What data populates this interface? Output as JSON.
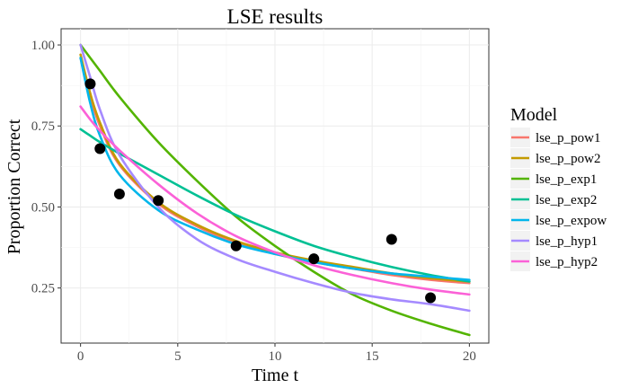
{
  "chart_data": {
    "type": "line",
    "title": "LSE results",
    "xlabel": "Time t",
    "ylabel": "Proportion Correct",
    "xlim": [
      -1,
      21
    ],
    "ylim": [
      0.08,
      1.05
    ],
    "xticks": [
      0,
      5,
      10,
      15,
      20
    ],
    "xtick_labels": [
      "0",
      "5",
      "10",
      "15",
      "20"
    ],
    "yticks": [
      0.25,
      0.5,
      0.75,
      1.0
    ],
    "ytick_labels": [
      "0.25",
      "0.50",
      "0.75",
      "1.00"
    ],
    "grid": true,
    "legend": {
      "title": "Model",
      "placement": "right"
    },
    "series": [
      {
        "name": "lse_p_pow1",
        "color": "#F8766D",
        "x": [
          0,
          0.5,
          1,
          2,
          4,
          6,
          8,
          10,
          12,
          14,
          16,
          18,
          20
        ],
        "y": [
          0.96,
          0.84,
          0.75,
          0.63,
          0.51,
          0.44,
          0.39,
          0.355,
          0.33,
          0.31,
          0.29,
          0.275,
          0.265
        ]
      },
      {
        "name": "lse_p_pow2",
        "color": "#C49A00",
        "x": [
          0,
          0.5,
          1,
          2,
          4,
          6,
          8,
          10,
          12,
          14,
          16,
          18,
          20
        ],
        "y": [
          0.97,
          0.85,
          0.76,
          0.635,
          0.515,
          0.445,
          0.395,
          0.36,
          0.335,
          0.315,
          0.295,
          0.28,
          0.27
        ]
      },
      {
        "name": "lse_p_exp1",
        "color": "#53B400",
        "x": [
          0,
          0.5,
          1,
          2,
          4,
          6,
          8,
          10,
          12,
          14,
          16,
          18,
          20
        ],
        "y": [
          1.0,
          0.96,
          0.92,
          0.84,
          0.7,
          0.58,
          0.47,
          0.38,
          0.3,
          0.23,
          0.18,
          0.14,
          0.105
        ]
      },
      {
        "name": "lse_p_exp2",
        "color": "#00C094",
        "x": [
          0,
          0.5,
          1,
          2,
          4,
          6,
          8,
          10,
          12,
          14,
          16,
          18,
          20
        ],
        "y": [
          0.74,
          0.72,
          0.7,
          0.665,
          0.6,
          0.535,
          0.475,
          0.425,
          0.38,
          0.345,
          0.315,
          0.29,
          0.27
        ]
      },
      {
        "name": "lse_p_expow",
        "color": "#00B6EB",
        "x": [
          0,
          0.5,
          1,
          2,
          4,
          6,
          8,
          10,
          12,
          14,
          16,
          18,
          20
        ],
        "y": [
          0.96,
          0.82,
          0.72,
          0.6,
          0.49,
          0.43,
          0.385,
          0.355,
          0.33,
          0.31,
          0.295,
          0.285,
          0.275
        ]
      },
      {
        "name": "lse_p_hyp1",
        "color": "#A58AFF",
        "x": [
          0,
          0.5,
          1,
          2,
          4,
          6,
          8,
          10,
          12,
          14,
          16,
          18,
          20
        ],
        "y": [
          1.0,
          0.9,
          0.8,
          0.66,
          0.5,
          0.4,
          0.34,
          0.3,
          0.265,
          0.235,
          0.215,
          0.2,
          0.18
        ]
      },
      {
        "name": "lse_p_hyp2",
        "color": "#FB61D7",
        "x": [
          0,
          0.5,
          1,
          2,
          4,
          6,
          8,
          10,
          12,
          14,
          16,
          18,
          20
        ],
        "y": [
          0.81,
          0.77,
          0.735,
          0.675,
          0.57,
          0.48,
          0.41,
          0.36,
          0.32,
          0.29,
          0.265,
          0.245,
          0.23
        ]
      }
    ],
    "observed": {
      "color": "#000000",
      "x": [
        0.5,
        1,
        2,
        4,
        8,
        12,
        16,
        18
      ],
      "y": [
        0.88,
        0.68,
        0.54,
        0.52,
        0.38,
        0.34,
        0.4,
        0.22
      ]
    }
  }
}
